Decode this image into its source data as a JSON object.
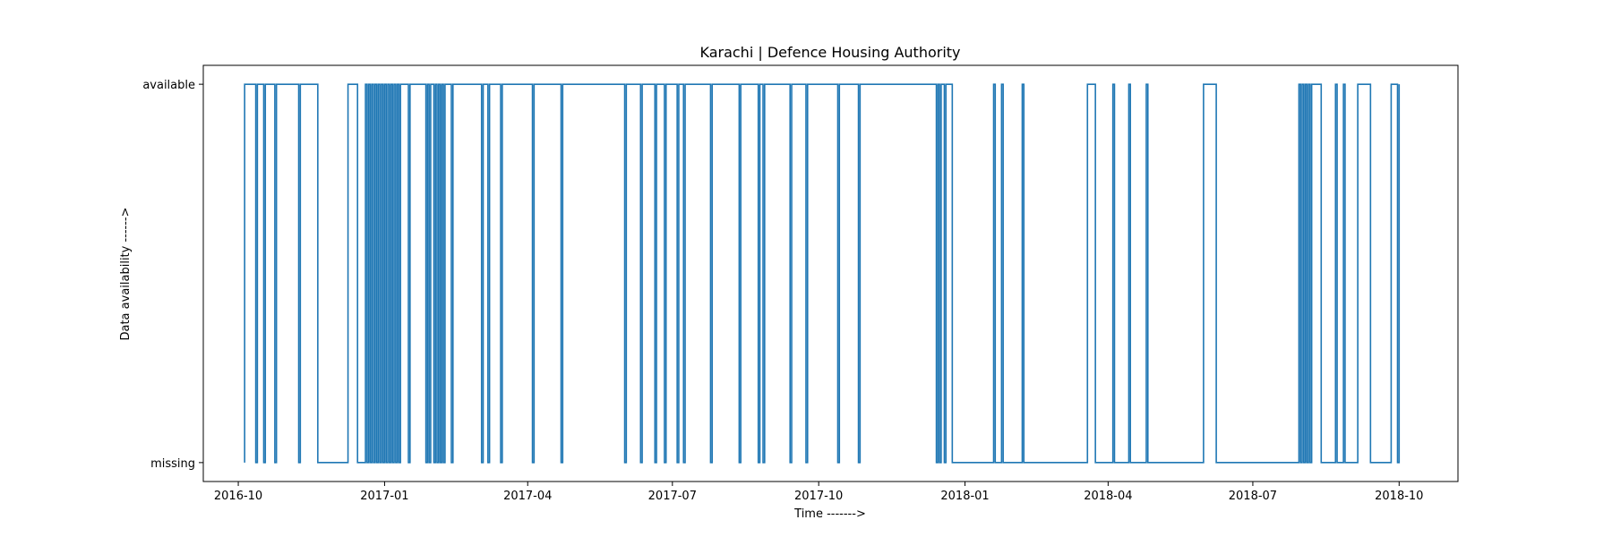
{
  "chart_data": {
    "type": "line",
    "step": true,
    "title": "Karachi | Defence Housing Authority",
    "xlabel": "Time ------->",
    "ylabel": "Data availability ------>",
    "y_categories": [
      "missing",
      "available"
    ],
    "x_ticks": [
      "2016-10",
      "2017-01",
      "2017-04",
      "2017-07",
      "2017-10",
      "2018-01",
      "2018-04",
      "2018-07",
      "2018-10"
    ],
    "xlim": [
      "2016-09-09",
      "2018-11-07"
    ],
    "ylim": [
      -0.05,
      1.05
    ],
    "grid": false,
    "color": "#1f77b4",
    "x_start": "2016-10-05",
    "x_end": "2018-10-01",
    "initial_state": "missing",
    "transitions": [
      "2016-10-05",
      "2016-10-12",
      "2016-10-13",
      "2016-10-17",
      "2016-10-18",
      "2016-10-24",
      "2016-10-25",
      "2016-11-08",
      "2016-11-09",
      "2016-11-20",
      "2016-12-09",
      "2016-12-15",
      "2016-12-20",
      "2016-12-21",
      "2016-12-22",
      "2016-12-23",
      "2016-12-24",
      "2016-12-25",
      "2016-12-26",
      "2016-12-27",
      "2016-12-28",
      "2016-12-29",
      "2016-12-30",
      "2016-12-31",
      "2017-01-01",
      "2017-01-02",
      "2017-01-03",
      "2017-01-04",
      "2017-01-05",
      "2017-01-06",
      "2017-01-07",
      "2017-01-08",
      "2017-01-09",
      "2017-01-10",
      "2017-01-11",
      "2017-01-16",
      "2017-01-17",
      "2017-01-27",
      "2017-01-28",
      "2017-01-29",
      "2017-01-30",
      "2017-02-01",
      "2017-02-02",
      "2017-02-03",
      "2017-02-04",
      "2017-02-05",
      "2017-02-06",
      "2017-02-07",
      "2017-02-08",
      "2017-02-12",
      "2017-02-13",
      "2017-03-03",
      "2017-03-04",
      "2017-03-07",
      "2017-03-08",
      "2017-03-15",
      "2017-03-16",
      "2017-04-04",
      "2017-04-05",
      "2017-04-22",
      "2017-04-23",
      "2017-06-01",
      "2017-06-02",
      "2017-06-11",
      "2017-06-12",
      "2017-06-20",
      "2017-06-21",
      "2017-06-26",
      "2017-06-27",
      "2017-07-04",
      "2017-07-05",
      "2017-07-08",
      "2017-07-09",
      "2017-07-25",
      "2017-07-26",
      "2017-08-12",
      "2017-08-13",
      "2017-08-24",
      "2017-08-25",
      "2017-08-27",
      "2017-08-28",
      "2017-09-13",
      "2017-09-14",
      "2017-09-23",
      "2017-09-24",
      "2017-10-13",
      "2017-10-14",
      "2017-10-26",
      "2017-10-27",
      "2017-12-14",
      "2017-12-15",
      "2017-12-16",
      "2017-12-17",
      "2017-12-19",
      "2017-12-20",
      "2017-12-24",
      "2018-01-19",
      "2018-01-20",
      "2018-01-24",
      "2018-01-25",
      "2018-02-06",
      "2018-02-07",
      "2018-03-19",
      "2018-03-24",
      "2018-04-04",
      "2018-04-05",
      "2018-04-14",
      "2018-04-15",
      "2018-04-25",
      "2018-04-26",
      "2018-05-31",
      "2018-06-08",
      "2018-07-30",
      "2018-07-31",
      "2018-08-01",
      "2018-08-02",
      "2018-08-03",
      "2018-08-04",
      "2018-08-05",
      "2018-08-06",
      "2018-08-07",
      "2018-08-13",
      "2018-08-22",
      "2018-08-23",
      "2018-08-27",
      "2018-08-28",
      "2018-09-05",
      "2018-09-13",
      "2018-09-26",
      "2018-09-30",
      "2018-10-01"
    ]
  }
}
